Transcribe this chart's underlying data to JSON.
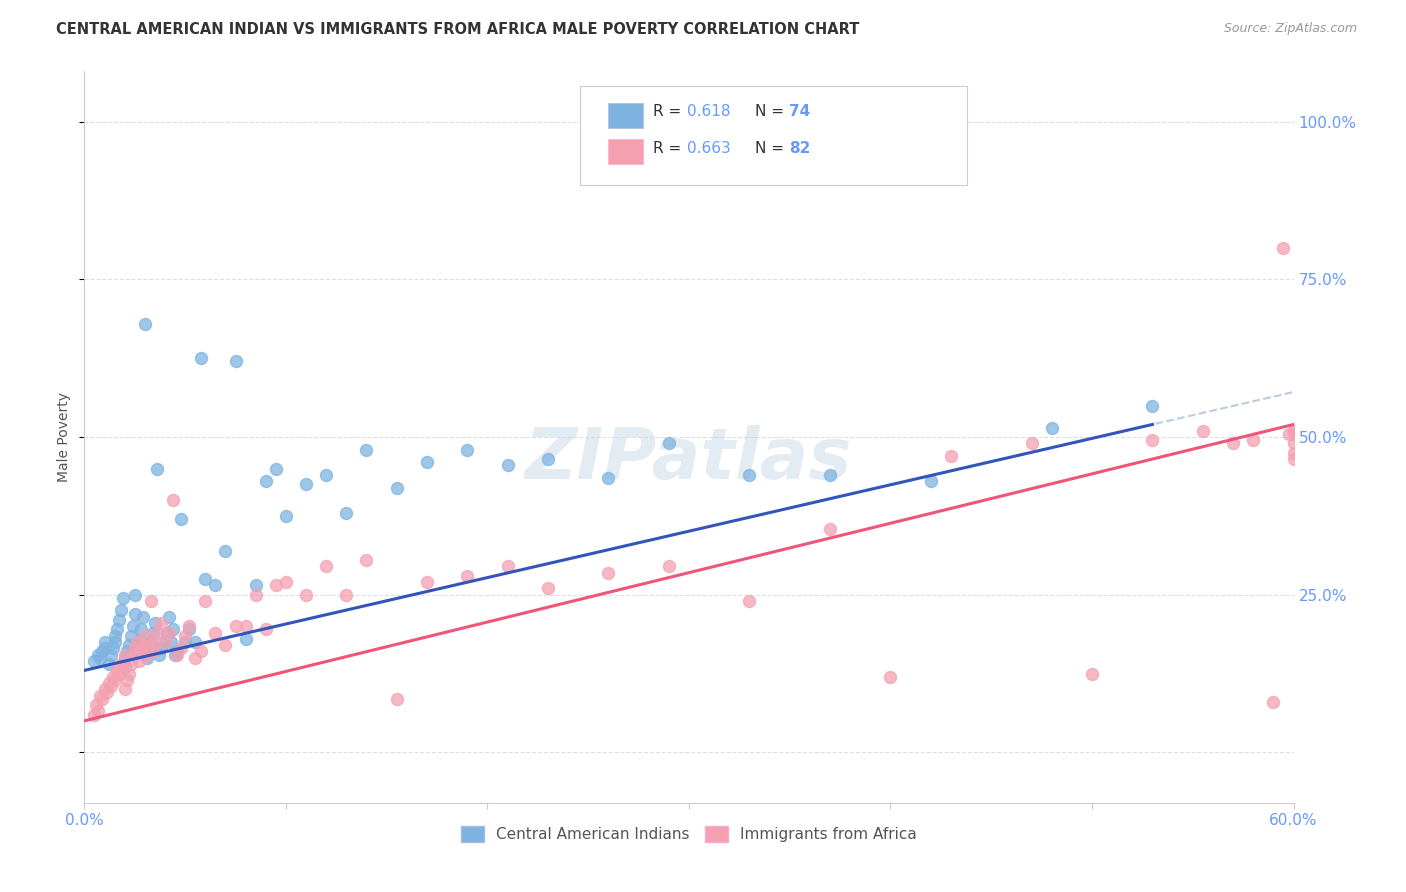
{
  "title": "CENTRAL AMERICAN INDIAN VS IMMIGRANTS FROM AFRICA MALE POVERTY CORRELATION CHART",
  "source": "Source: ZipAtlas.com",
  "ylabel": "Male Poverty",
  "xlim": [
    0.0,
    0.6
  ],
  "ylim": [
    -0.08,
    1.08
  ],
  "legend_r1": "R = 0.618",
  "legend_n1": "N = 74",
  "legend_r2": "R = 0.663",
  "legend_n2": "N = 82",
  "label1": "Central American Indians",
  "label2": "Immigrants from Africa",
  "color1": "#7EB3E0",
  "color2": "#F4A0B0",
  "trend_color1": "#3355BB",
  "trend_color2": "#EE5577",
  "trend_ext_color": "#BBCCDD",
  "background_color": "#FFFFFF",
  "watermark": "ZIPatlas",
  "grid_color": "#DDDDEE",
  "tick_color": "#6699FF",
  "title_color": "#333333",
  "source_color": "#999999",
  "ylabel_color": "#555555",
  "scatter1_x": [
    0.005,
    0.007,
    0.008,
    0.009,
    0.01,
    0.01,
    0.012,
    0.013,
    0.014,
    0.015,
    0.015,
    0.016,
    0.017,
    0.018,
    0.019,
    0.02,
    0.02,
    0.021,
    0.022,
    0.023,
    0.024,
    0.025,
    0.025,
    0.026,
    0.027,
    0.028,
    0.028,
    0.029,
    0.03,
    0.031,
    0.032,
    0.033,
    0.034,
    0.035,
    0.036,
    0.037,
    0.038,
    0.04,
    0.041,
    0.042,
    0.043,
    0.044,
    0.045,
    0.046,
    0.048,
    0.05,
    0.052,
    0.055,
    0.058,
    0.06,
    0.065,
    0.07,
    0.075,
    0.08,
    0.085,
    0.09,
    0.095,
    0.1,
    0.11,
    0.12,
    0.13,
    0.14,
    0.155,
    0.17,
    0.19,
    0.21,
    0.23,
    0.26,
    0.29,
    0.33,
    0.37,
    0.42,
    0.48,
    0.53
  ],
  "scatter1_y": [
    0.145,
    0.155,
    0.15,
    0.16,
    0.165,
    0.175,
    0.14,
    0.155,
    0.165,
    0.175,
    0.185,
    0.195,
    0.21,
    0.225,
    0.245,
    0.135,
    0.15,
    0.16,
    0.17,
    0.185,
    0.2,
    0.22,
    0.25,
    0.16,
    0.17,
    0.18,
    0.195,
    0.215,
    0.68,
    0.15,
    0.165,
    0.175,
    0.19,
    0.205,
    0.45,
    0.155,
    0.165,
    0.175,
    0.19,
    0.215,
    0.175,
    0.195,
    0.155,
    0.16,
    0.37,
    0.175,
    0.195,
    0.175,
    0.625,
    0.275,
    0.265,
    0.32,
    0.62,
    0.18,
    0.265,
    0.43,
    0.45,
    0.375,
    0.425,
    0.44,
    0.38,
    0.48,
    0.42,
    0.46,
    0.48,
    0.455,
    0.465,
    0.435,
    0.49,
    0.44,
    0.44,
    0.43,
    0.515,
    0.55
  ],
  "scatter2_x": [
    0.005,
    0.006,
    0.007,
    0.008,
    0.009,
    0.01,
    0.011,
    0.012,
    0.013,
    0.014,
    0.015,
    0.016,
    0.017,
    0.018,
    0.019,
    0.02,
    0.02,
    0.021,
    0.022,
    0.023,
    0.024,
    0.025,
    0.026,
    0.027,
    0.028,
    0.029,
    0.03,
    0.031,
    0.032,
    0.033,
    0.034,
    0.035,
    0.036,
    0.038,
    0.04,
    0.042,
    0.044,
    0.046,
    0.048,
    0.05,
    0.052,
    0.055,
    0.058,
    0.06,
    0.065,
    0.07,
    0.075,
    0.08,
    0.085,
    0.09,
    0.095,
    0.1,
    0.11,
    0.12,
    0.13,
    0.14,
    0.155,
    0.17,
    0.19,
    0.21,
    0.23,
    0.26,
    0.29,
    0.33,
    0.37,
    0.4,
    0.43,
    0.47,
    0.5,
    0.53,
    0.555,
    0.57,
    0.58,
    0.59,
    0.595,
    0.598,
    0.6,
    0.6,
    0.6,
    0.6,
    0.6,
    0.6
  ],
  "scatter2_y": [
    0.06,
    0.075,
    0.065,
    0.09,
    0.085,
    0.1,
    0.095,
    0.11,
    0.105,
    0.12,
    0.115,
    0.13,
    0.125,
    0.14,
    0.135,
    0.1,
    0.155,
    0.115,
    0.125,
    0.14,
    0.155,
    0.165,
    0.175,
    0.145,
    0.16,
    0.17,
    0.185,
    0.155,
    0.17,
    0.24,
    0.16,
    0.175,
    0.19,
    0.205,
    0.175,
    0.19,
    0.4,
    0.155,
    0.165,
    0.185,
    0.2,
    0.15,
    0.16,
    0.24,
    0.19,
    0.17,
    0.2,
    0.2,
    0.25,
    0.195,
    0.265,
    0.27,
    0.25,
    0.295,
    0.25,
    0.305,
    0.085,
    0.27,
    0.28,
    0.295,
    0.26,
    0.285,
    0.295,
    0.24,
    0.355,
    0.12,
    0.47,
    0.49,
    0.125,
    0.495,
    0.51,
    0.49,
    0.495,
    0.08,
    0.8,
    0.505,
    0.465,
    0.51,
    0.49,
    0.505,
    0.51,
    0.475
  ]
}
